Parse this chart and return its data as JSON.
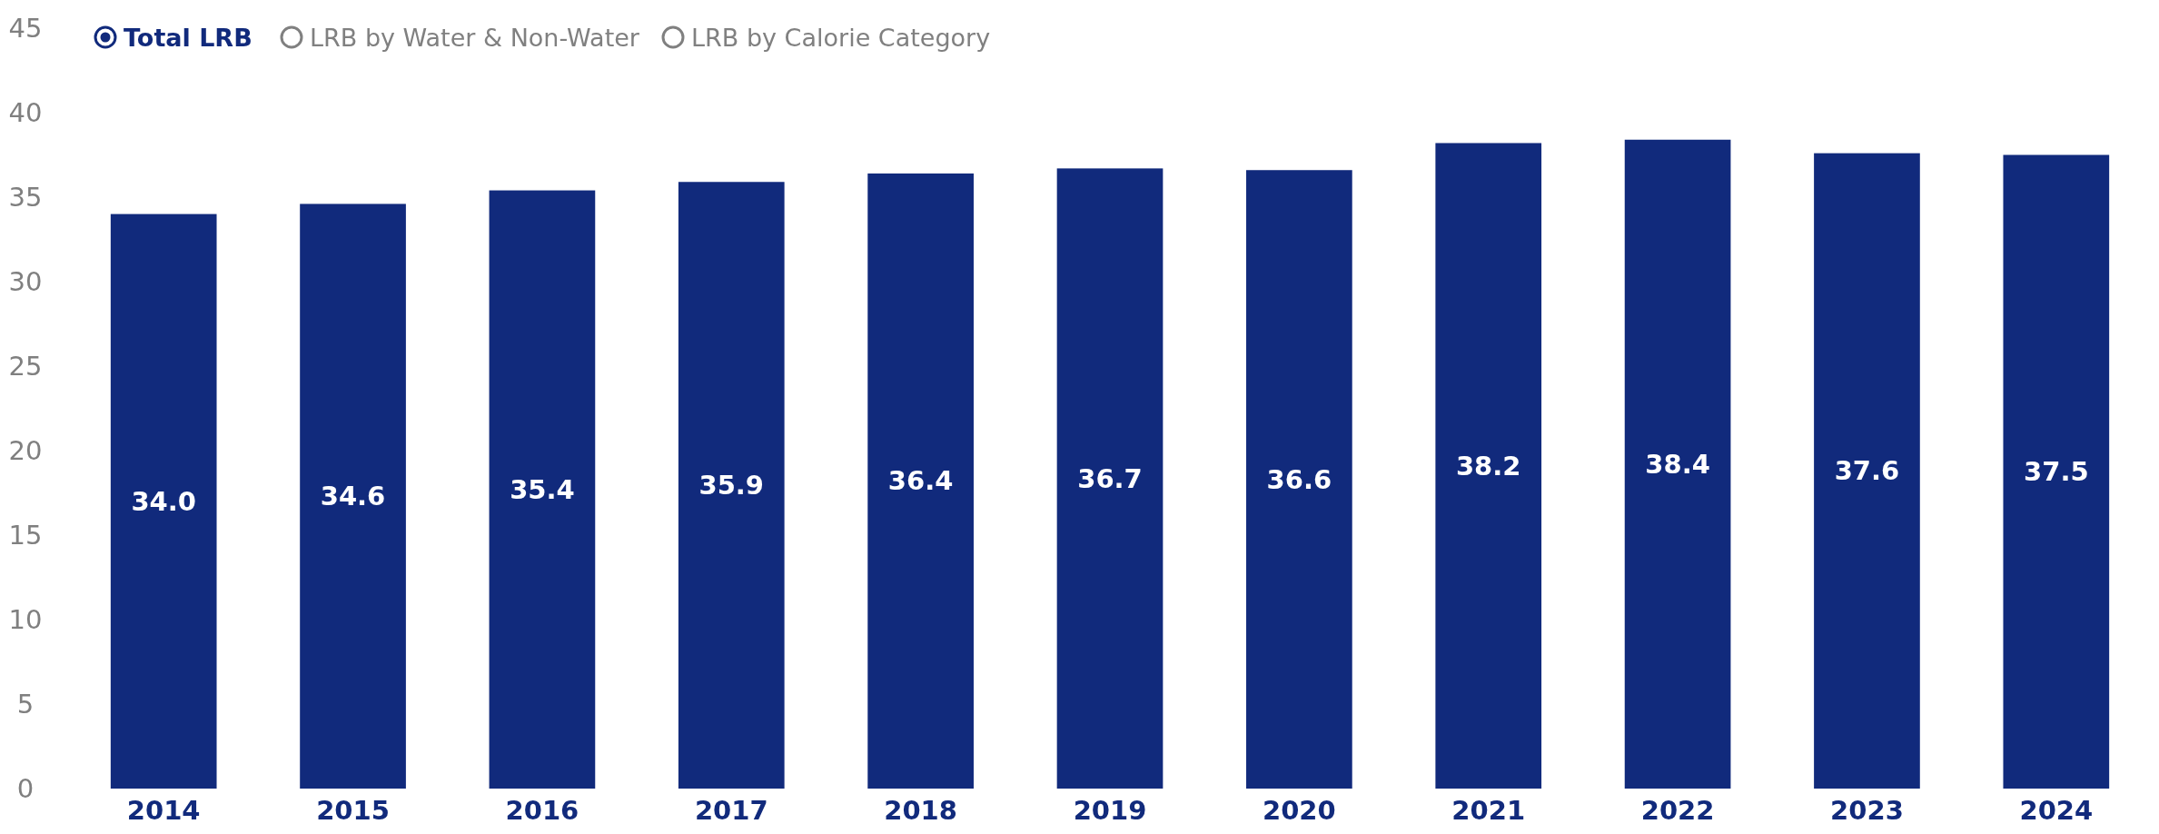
{
  "chart_data": {
    "type": "bar",
    "categories": [
      "2014",
      "2015",
      "2016",
      "2017",
      "2018",
      "2019",
      "2020",
      "2021",
      "2022",
      "2023",
      "2024"
    ],
    "series": [
      {
        "name": "Total LRB",
        "color": "#112a7c",
        "values": [
          34.0,
          34.6,
          35.4,
          35.9,
          36.4,
          36.7,
          36.6,
          38.2,
          38.4,
          37.6,
          37.5
        ],
        "value_labels": [
          "34.0",
          "34.6",
          "35.4",
          "35.9",
          "36.4",
          "36.7",
          "36.6",
          "38.2",
          "38.4",
          "37.6",
          "37.5"
        ]
      }
    ],
    "ylim": [
      0,
      45
    ],
    "yticks": [
      0,
      5,
      10,
      15,
      20,
      25,
      30,
      35,
      40,
      45
    ],
    "legend": "top left",
    "grid": false,
    "annotations": [
      "LRB by Water & Non-Water",
      "LRB by Calorie Category"
    ]
  }
}
